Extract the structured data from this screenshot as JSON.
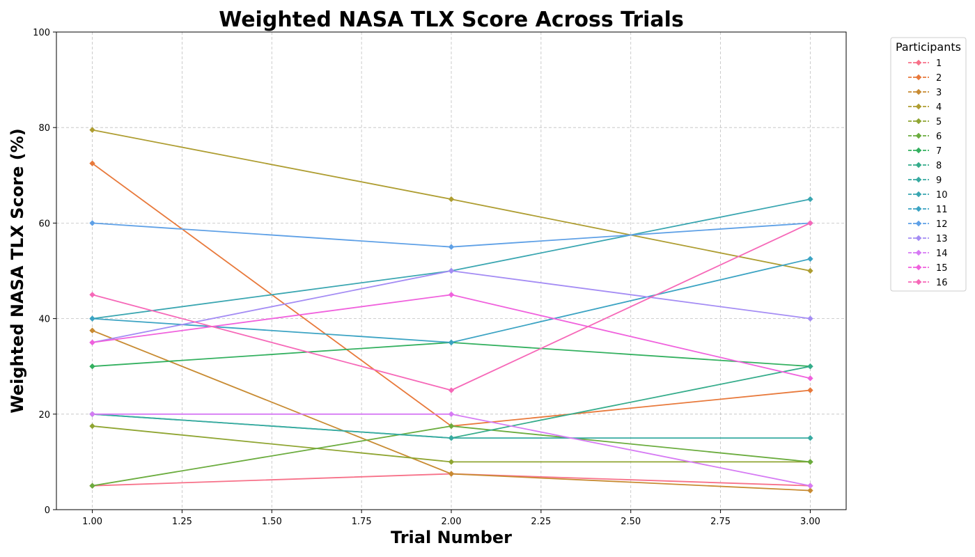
{
  "chart_data": {
    "type": "line",
    "title": "Weighted NASA TLX Score Across Trials",
    "xlabel": "Trial Number",
    "ylabel": "Weighted NASA TLX Score (%)",
    "xlim": [
      0.9,
      3.1
    ],
    "ylim": [
      0,
      100
    ],
    "xticks": [
      "1.00",
      "1.25",
      "1.50",
      "1.75",
      "2.00",
      "2.25",
      "2.50",
      "2.75",
      "3.00"
    ],
    "yticks": [
      "0",
      "20",
      "40",
      "60",
      "80",
      "100"
    ],
    "grid": true,
    "legend_title": "Participants",
    "legend_placement": "outside-right-top",
    "x": [
      1,
      2,
      3
    ],
    "series": [
      {
        "name": "1",
        "color": "#f77189",
        "values": [
          5,
          7.5,
          5
        ]
      },
      {
        "name": "2",
        "color": "#e8793b",
        "values": [
          72.5,
          17.5,
          25
        ]
      },
      {
        "name": "3",
        "color": "#c88b32",
        "values": [
          37.5,
          7.5,
          4
        ]
      },
      {
        "name": "4",
        "color": "#ae9d31",
        "values": [
          79.5,
          65,
          50
        ]
      },
      {
        "name": "5",
        "color": "#8fa532",
        "values": [
          17.5,
          10,
          10
        ]
      },
      {
        "name": "6",
        "color": "#6bac3e",
        "values": [
          5,
          17.5,
          10
        ]
      },
      {
        "name": "7",
        "color": "#33b05f",
        "values": [
          30,
          35,
          30
        ]
      },
      {
        "name": "8",
        "color": "#35ac8b",
        "values": [
          20,
          15,
          30
        ]
      },
      {
        "name": "9",
        "color": "#37aaa1",
        "values": [
          20,
          15,
          15
        ]
      },
      {
        "name": "10",
        "color": "#3aa6b1",
        "values": [
          40,
          50,
          65
        ]
      },
      {
        "name": "11",
        "color": "#3ba3c3",
        "values": [
          40,
          35,
          52.5
        ]
      },
      {
        "name": "12",
        "color": "#5ea0e6",
        "values": [
          60,
          55,
          60
        ]
      },
      {
        "name": "13",
        "color": "#a48cf4",
        "values": [
          35,
          50,
          40
        ]
      },
      {
        "name": "14",
        "color": "#d67af4",
        "values": [
          20,
          20,
          5
        ]
      },
      {
        "name": "15",
        "color": "#f061dd",
        "values": [
          35,
          45,
          27.5
        ]
      },
      {
        "name": "16",
        "color": "#f668b8",
        "values": [
          45,
          25,
          60
        ]
      }
    ]
  }
}
